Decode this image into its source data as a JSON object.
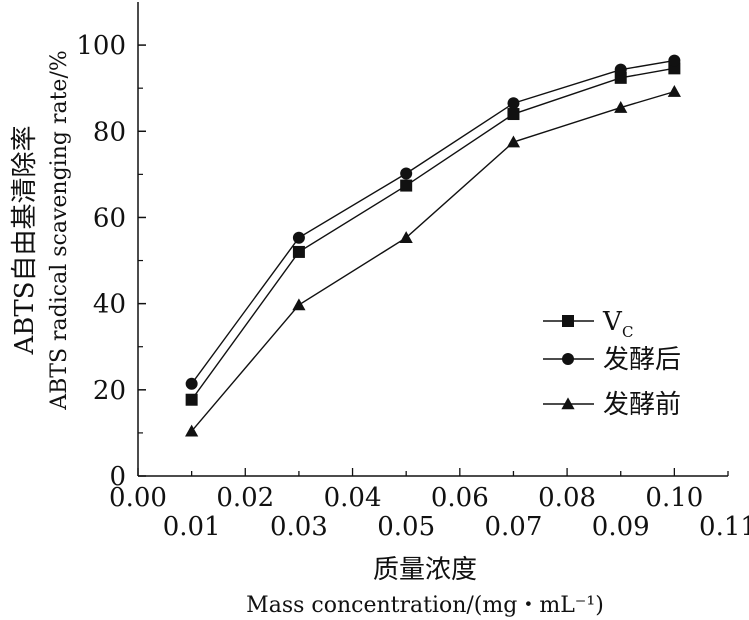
{
  "chart_data": {
    "type": "line",
    "title": "",
    "xlabel_cn": "质量浓度",
    "xlabel_en": "Mass concentration/(mg・mL⁻¹)",
    "ylabel_cn": "ABTS自由基清除率",
    "ylabel_en": "ABTS radical scavenging rate/%",
    "xlim": [
      0,
      0.11
    ],
    "ylim": [
      0,
      110
    ],
    "x_ticks_top": [
      "0.00",
      "0.02",
      "0.04",
      "0.06",
      "0.08",
      "0.10"
    ],
    "x_ticks_bottom": [
      "0.01",
      "0.03",
      "0.05",
      "0.07",
      "0.09",
      "0.11"
    ],
    "y_ticks": [
      "0",
      "20",
      "40",
      "60",
      "80",
      "100"
    ],
    "x": [
      0.01,
      0.03,
      0.05,
      0.07,
      0.09,
      0.1
    ],
    "series": [
      {
        "name": "V",
        "name_sub": "C",
        "marker": "square",
        "values": [
          17.7,
          52.0,
          67.4,
          84.0,
          92.4,
          94.6
        ]
      },
      {
        "name": "发酵后",
        "marker": "circle",
        "values": [
          21.4,
          55.3,
          70.2,
          86.5,
          94.3,
          96.4
        ]
      },
      {
        "name": "发酵前",
        "marker": "triangle",
        "values": [
          10.4,
          39.7,
          55.3,
          77.5,
          85.5,
          89.2
        ]
      }
    ],
    "legend_position": "right-middle",
    "grid": false
  }
}
